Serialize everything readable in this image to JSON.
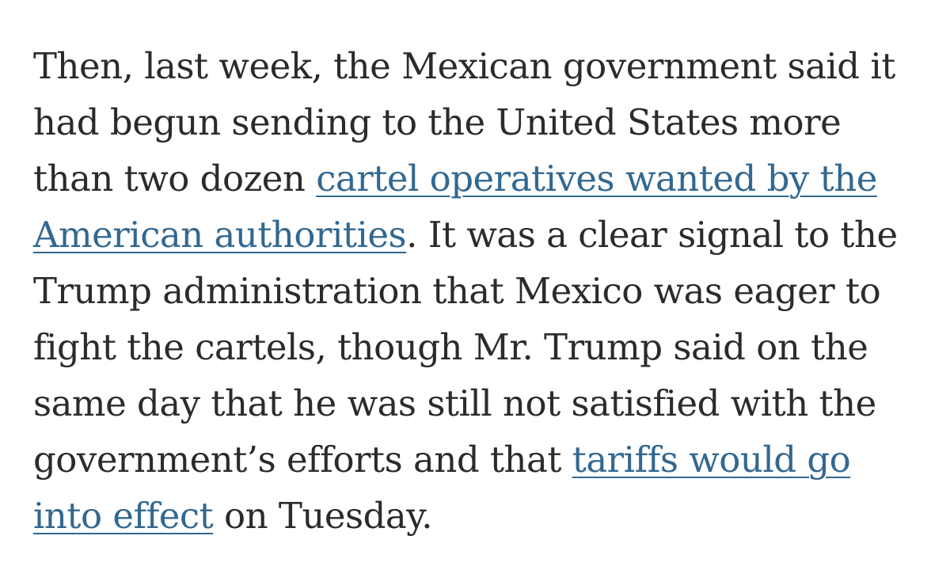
{
  "paragraph": {
    "lines": [
      {
        "text": "Then, last week, the Mexican government said it"
      },
      {
        "text": "had begun sending to the United States more"
      },
      {
        "before": "than two dozen ",
        "link": "cartel operatives wanted by the"
      },
      {
        "link": "American authorities",
        "after": ". It was a clear signal to the"
      },
      {
        "text": "Trump administration that Mexico was eager to"
      },
      {
        "text": "fight the cartels, though Mr. Trump said on the"
      },
      {
        "text": "same day that he was still not satisfied with the"
      },
      {
        "before": "government’s efforts and that ",
        "link": "tariffs would go"
      },
      {
        "link": "into effect",
        "after": " on Tuesday."
      }
    ]
  },
  "colors": {
    "text": "#2b2b2b",
    "link": "#326891",
    "background": "#ffffff"
  }
}
